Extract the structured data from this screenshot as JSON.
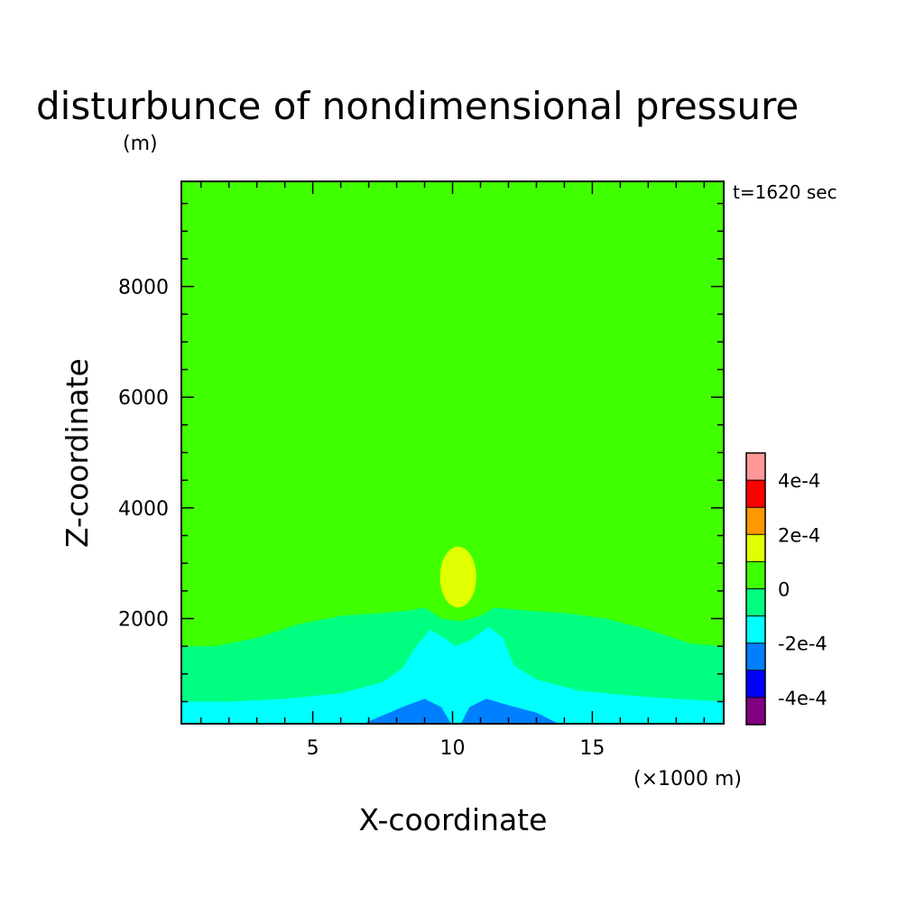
{
  "chart_data": {
    "type": "contour",
    "title": "disturbunce of nondimensional pressure",
    "title_unit": "(m)",
    "time_label": "t=1620 sec",
    "xlabel": "X-coordinate",
    "x_unit": "(×1000 m)",
    "ylabel": "Z-coordinate",
    "xlim": [
      0.3,
      19.7
    ],
    "ylim": [
      100,
      9900
    ],
    "x_ticks": [
      5,
      10,
      15
    ],
    "x_tick_labels": [
      "5",
      "10",
      "15"
    ],
    "y_ticks": [
      2000,
      4000,
      6000,
      8000
    ],
    "y_tick_labels": [
      "2000",
      "4000",
      "6000",
      "8000"
    ],
    "grid": false,
    "legend_position": "right-bottom",
    "colorbar": {
      "levels": [
        -0.0005,
        -0.0004,
        -0.0003,
        -0.0002,
        -0.0001,
        0,
        0.0001,
        0.0002,
        0.0003,
        0.0004,
        0.0005
      ],
      "colors": [
        "#800080",
        "#0000ff",
        "#0080ff",
        "#00ffff",
        "#00ff80",
        "#40ff00",
        "#e0ff00",
        "#ff9900",
        "#ff0000",
        "#ff9999"
      ],
      "tick_values": [
        0.0004,
        0.0002,
        0,
        -0.0002,
        -0.0004
      ],
      "tick_labels": [
        "4e-4",
        "2e-4",
        "0",
        "-2e-4",
        "-4e-4"
      ]
    },
    "regions": [
      {
        "level": "0 to 1e-4",
        "color": "#40ff00",
        "type": "background"
      },
      {
        "level": "-1e-4 to 0",
        "color": "#00ff80",
        "polygon": [
          [
            0.3,
            100
          ],
          [
            0.3,
            1500
          ],
          [
            1.5,
            1500
          ],
          [
            3,
            1650
          ],
          [
            4.5,
            1900
          ],
          [
            6,
            2050
          ],
          [
            7.5,
            2100
          ],
          [
            8.5,
            2150
          ],
          [
            9,
            2200
          ],
          [
            9.6,
            2000
          ],
          [
            10.3,
            1950
          ],
          [
            11,
            2050
          ],
          [
            11.5,
            2200
          ],
          [
            12.5,
            2150
          ],
          [
            14,
            2100
          ],
          [
            15.5,
            2000
          ],
          [
            17,
            1800
          ],
          [
            18.5,
            1550
          ],
          [
            19.7,
            1500
          ],
          [
            19.7,
            100
          ]
        ]
      },
      {
        "level": "-2e-4 to -1e-4",
        "color": "#00ffff",
        "polygon": [
          [
            0.3,
            100
          ],
          [
            0.3,
            500
          ],
          [
            2,
            500
          ],
          [
            4,
            550
          ],
          [
            6,
            650
          ],
          [
            7.5,
            850
          ],
          [
            8.2,
            1100
          ],
          [
            8.7,
            1500
          ],
          [
            9.2,
            1800
          ],
          [
            9.7,
            1650
          ],
          [
            10.1,
            1500
          ],
          [
            10.6,
            1600
          ],
          [
            11.3,
            1850
          ],
          [
            11.8,
            1650
          ],
          [
            12.2,
            1150
          ],
          [
            13,
            900
          ],
          [
            14.5,
            700
          ],
          [
            16.5,
            600
          ],
          [
            18,
            550
          ],
          [
            19.7,
            500
          ],
          [
            19.7,
            100
          ]
        ]
      },
      {
        "level": "-3e-4 to -2e-4",
        "color": "#0080ff",
        "polygon": [
          [
            6.8,
            100
          ],
          [
            7.5,
            250
          ],
          [
            8.3,
            420
          ],
          [
            9,
            550
          ],
          [
            9.6,
            400
          ],
          [
            9.95,
            100
          ],
          [
            10.3,
            100
          ],
          [
            10.6,
            400
          ],
          [
            11.2,
            550
          ],
          [
            12.1,
            420
          ],
          [
            13,
            300
          ],
          [
            13.8,
            100
          ]
        ]
      },
      {
        "level": "1e-4 to 2e-4",
        "color": "#e0ff00",
        "center": [
          10.2,
          2750
        ],
        "rx": 0.65,
        "ry": 550
      }
    ]
  }
}
